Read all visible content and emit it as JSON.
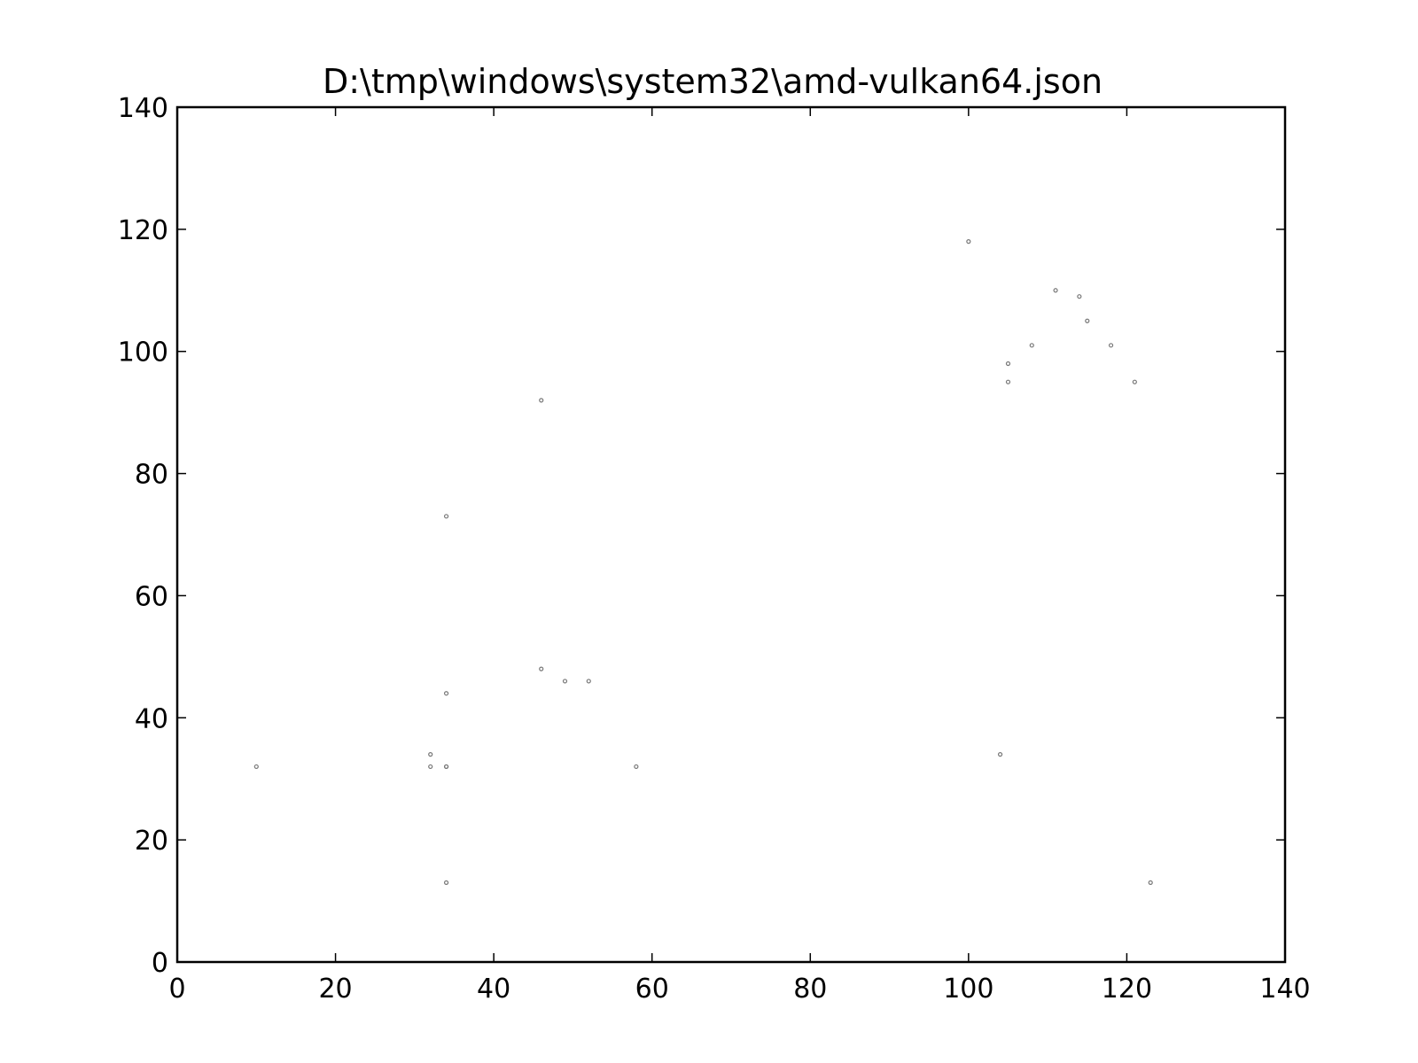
{
  "chart_data": {
    "type": "scatter",
    "title": "D:\\tmp\\windows\\system32\\amd-vulkan64.json",
    "xlabel": "",
    "ylabel": "",
    "xlim": [
      0,
      140
    ],
    "ylim": [
      0,
      140
    ],
    "xticks": [
      0,
      20,
      40,
      60,
      80,
      100,
      120,
      140
    ],
    "yticks": [
      0,
      20,
      40,
      60,
      80,
      100,
      120,
      140
    ],
    "grid": false,
    "legend": "none",
    "marker_color": "#777777",
    "series": [
      {
        "x": [
          10,
          32,
          32,
          34,
          34,
          34,
          34,
          34,
          46,
          46,
          49,
          52,
          58,
          100,
          104,
          105,
          105,
          108,
          111,
          114,
          115,
          118,
          121,
          123
        ],
        "y": [
          32,
          32,
          34,
          32,
          44,
          73,
          13,
          32,
          48,
          92,
          46,
          46,
          32,
          118,
          34,
          95,
          98,
          101,
          110,
          109,
          105,
          101,
          95,
          13
        ]
      }
    ]
  }
}
